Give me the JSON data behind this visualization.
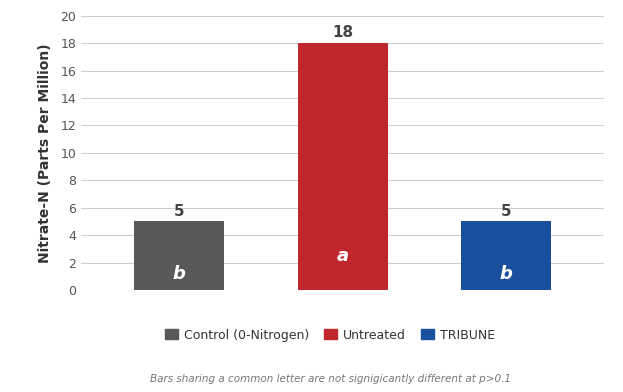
{
  "categories": [
    "Control (0-Nitrogen)",
    "Untreated",
    "TRIBUNE"
  ],
  "values": [
    5,
    18,
    5
  ],
  "bar_colors": [
    "#595959",
    "#c0272d",
    "#1a4f9e"
  ],
  "bar_labels": [
    "b",
    "a",
    "b"
  ],
  "value_labels": [
    "5",
    "18",
    "5"
  ],
  "ylabel": "Nitrate-N (Parts Per Million)",
  "ylim": [
    0,
    20
  ],
  "yticks": [
    0,
    2,
    4,
    6,
    8,
    10,
    12,
    14,
    16,
    18,
    20
  ],
  "legend_labels": [
    "Control (0-Nitrogen)",
    "Untreated",
    "TRIBUNE"
  ],
  "legend_colors": [
    "#595959",
    "#c0272d",
    "#1a4f9e"
  ],
  "footnote": "Bars sharing a common letter are not signigicantly different at p>0.1",
  "background_color": "#ffffff",
  "bar_width": 0.55,
  "x_positions": [
    1,
    2,
    3
  ],
  "xlim": [
    0.4,
    3.6
  ]
}
